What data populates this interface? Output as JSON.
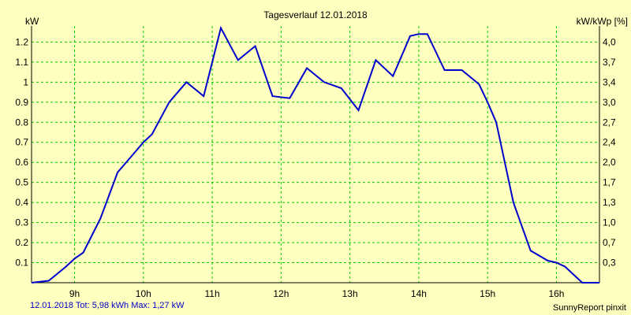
{
  "chart_data": {
    "type": "line",
    "title": "Tagesverlauf 12.01.2018",
    "ylabel_left": "kW",
    "ylabel_right": "kW/kWp [%]",
    "ylim": [
      0,
      1.28
    ],
    "left_ticks": [
      "0.1",
      "0.2",
      "0.3",
      "0.4",
      "0.5",
      "0.6",
      "0.7",
      "0.8",
      "0.9",
      "1",
      "1.1",
      "1.2"
    ],
    "right_ticks": [
      "0,3",
      "0,7",
      "1,0",
      "1,3",
      "1,7",
      "2,0",
      "2,4",
      "2,7",
      "3,0",
      "3,4",
      "3,7",
      "4,0"
    ],
    "x_ticks": [
      "9h",
      "10h",
      "11h",
      "12h",
      "13h",
      "14h",
      "15h",
      "16h"
    ],
    "x_tick_values": [
      9,
      10,
      11,
      12,
      13,
      14,
      15,
      16
    ],
    "xlim": [
      8.375,
      16.625
    ],
    "series": [
      {
        "name": "kW",
        "color": "#0000cc",
        "x": [
          8.375,
          8.625,
          8.875,
          9.0,
          9.125,
          9.375,
          9.625,
          9.875,
          10.0,
          10.125,
          10.375,
          10.625,
          10.875,
          11.125,
          11.375,
          11.625,
          11.875,
          12.125,
          12.375,
          12.625,
          12.875,
          13.125,
          13.375,
          13.625,
          13.875,
          14.0,
          14.125,
          14.375,
          14.625,
          14.875,
          15.0,
          15.125,
          15.375,
          15.625,
          15.875,
          16.0,
          16.125,
          16.375,
          16.625
        ],
        "y": [
          0.0,
          0.01,
          0.08,
          0.12,
          0.15,
          0.32,
          0.55,
          0.65,
          0.7,
          0.74,
          0.9,
          1.0,
          0.93,
          1.27,
          1.11,
          1.18,
          0.93,
          0.92,
          1.07,
          1.0,
          0.97,
          0.86,
          1.11,
          1.03,
          1.23,
          1.24,
          1.24,
          1.06,
          1.06,
          0.99,
          0.9,
          0.8,
          0.4,
          0.16,
          0.11,
          0.1,
          0.08,
          0.0,
          0.0
        ]
      }
    ]
  },
  "footer": {
    "left": "12.01.2018 Tot: 5,98 kWh Max: 1,27 kW",
    "right": "SunnyReport pinxit"
  }
}
